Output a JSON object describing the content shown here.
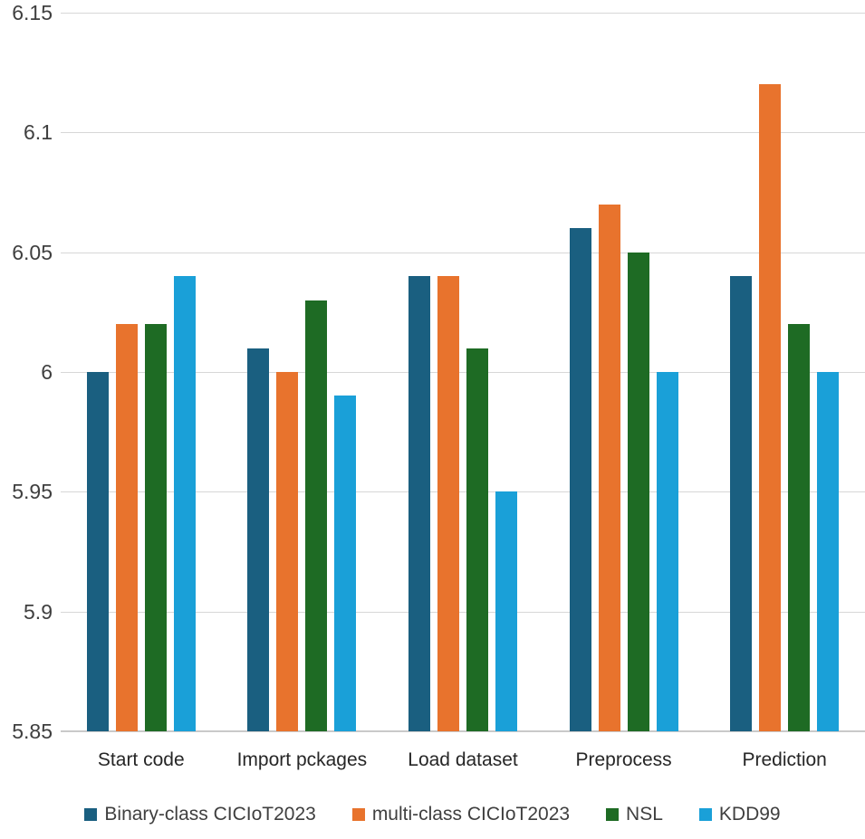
{
  "chart_data": {
    "type": "bar",
    "title": "",
    "xlabel": "",
    "ylabel": "",
    "categories": [
      "Start code",
      "Import pckages",
      "Load dataset",
      "Preprocess",
      "Prediction"
    ],
    "series": [
      {
        "name": "Binary-class CICIoT2023",
        "color": "#1a5f80",
        "values": [
          6.0,
          6.01,
          6.04,
          6.06,
          6.04
        ]
      },
      {
        "name": "multi-class CICIoT2023",
        "color": "#e8732d",
        "values": [
          6.02,
          6.0,
          6.04,
          6.07,
          6.12
        ]
      },
      {
        "name": "NSL",
        "color": "#1e6b24",
        "values": [
          6.02,
          6.03,
          6.01,
          6.05,
          6.02
        ]
      },
      {
        "name": "KDD99",
        "color": "#1aa0d8",
        "values": [
          6.04,
          5.99,
          5.95,
          6.0,
          6.0
        ]
      }
    ],
    "ylim": [
      5.85,
      6.15
    ],
    "yticks": [
      6.15,
      6.1,
      6.05,
      6,
      5.95,
      5.9,
      5.85
    ],
    "ytick_labels": [
      "6.15",
      "6.1",
      "6.05",
      "6",
      "5.95",
      "5.9",
      "5.85"
    ],
    "grid": true,
    "legend_position": "bottom"
  },
  "colors": {
    "background": "#ffffff",
    "gridline": "#d7d7d7",
    "axis_line": "#c9c9c9",
    "tick_text": "#3f3f3f",
    "category_text": "#262626",
    "legend_text": "#3f3f3f"
  }
}
